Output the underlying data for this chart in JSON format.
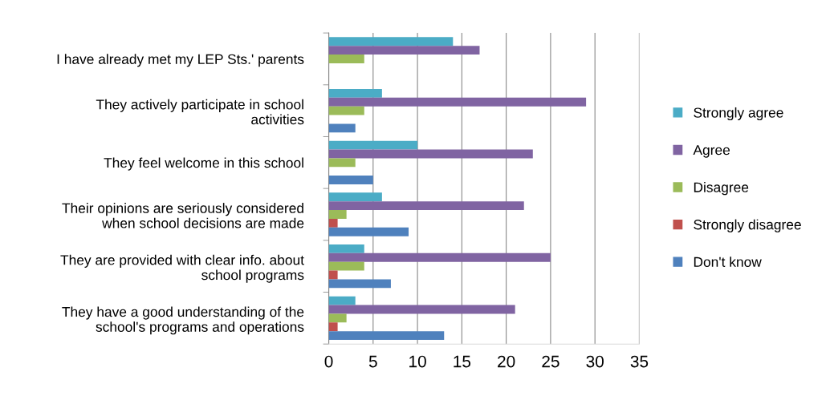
{
  "chart_data": {
    "type": "bar",
    "orientation": "horizontal",
    "categories": [
      "I have already met my LEP Sts.' parents",
      "They actively participate in school\nactivities",
      "They feel welcome in this school",
      "Their opinions are seriously considered\nwhen school decisions are made",
      "They are provided with clear info. about\nschool programs",
      "They have a good understanding of the\nschool's programs and operations"
    ],
    "series": [
      {
        "name": "Strongly agree",
        "color": "#4bacc6",
        "values": [
          14,
          6,
          10,
          6,
          4,
          3
        ]
      },
      {
        "name": "Agree",
        "color": "#8064a2",
        "values": [
          17,
          29,
          23,
          22,
          25,
          21
        ]
      },
      {
        "name": "Disagree",
        "color": "#9bbb59",
        "values": [
          4,
          4,
          3,
          2,
          4,
          2
        ]
      },
      {
        "name": "Strongly disagree",
        "color": "#c0504d",
        "values": [
          0,
          0,
          0,
          1,
          1,
          1
        ]
      },
      {
        "name": "Don't know",
        "color": "#4f81bd",
        "values": [
          0,
          3,
          5,
          9,
          7,
          13
        ]
      }
    ],
    "xlim": [
      0,
      35
    ],
    "xticks": [
      0,
      5,
      10,
      15,
      20,
      25,
      30,
      35
    ],
    "grid": "x",
    "legend": "right"
  }
}
